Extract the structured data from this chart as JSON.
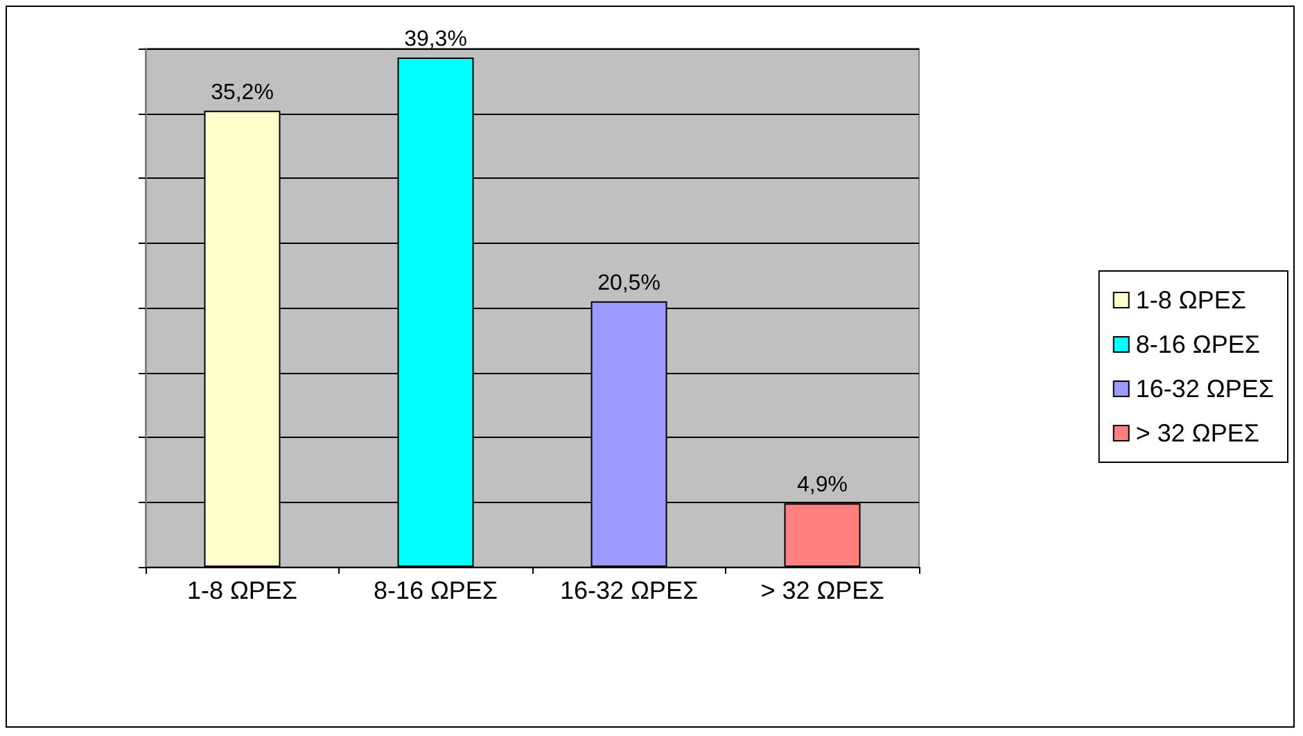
{
  "chart_data": {
    "type": "bar",
    "categories": [
      "1-8 ΩΡΕΣ",
      "8-16 ΩΡΕΣ",
      "16-32 ΩΡΕΣ",
      "> 32 ΩΡΕΣ"
    ],
    "series": [
      {
        "name": "1-8 ΩΡΕΣ",
        "color": "#ffffcc",
        "values": [
          35.2,
          null,
          null,
          null
        ],
        "value_labels": [
          "35,2%",
          null,
          null,
          null
        ]
      },
      {
        "name": "8-16 ΩΡΕΣ",
        "color": "#00ffff",
        "values": [
          null,
          39.3,
          null,
          null
        ],
        "value_labels": [
          null,
          "39,3%",
          null,
          null
        ]
      },
      {
        "name": "16-32 ΩΡΕΣ",
        "color": "#9999ff",
        "values": [
          null,
          null,
          20.5,
          null
        ],
        "value_labels": [
          null,
          null,
          "20,5%",
          null
        ]
      },
      {
        "name": "> 32 ΩΡΕΣ",
        "color": "#ff7f7f",
        "values": [
          null,
          null,
          null,
          4.9
        ],
        "value_labels": [
          null,
          null,
          null,
          "4,9%"
        ]
      }
    ],
    "ylim": [
      0,
      40
    ],
    "yticks": [
      {
        "value": 0,
        "label": null
      },
      {
        "value": 5,
        "label": null
      },
      {
        "value": 10,
        "label": null
      },
      {
        "value": 15,
        "label": null
      },
      {
        "value": 20,
        "label": null
      },
      {
        "value": 25,
        "label": null
      },
      {
        "value": 30,
        "label": null
      },
      {
        "value": 35,
        "label": null
      },
      {
        "value": 40,
        "label": null
      }
    ],
    "tick_labels": "x",
    "grid": "y",
    "legend": "right"
  }
}
